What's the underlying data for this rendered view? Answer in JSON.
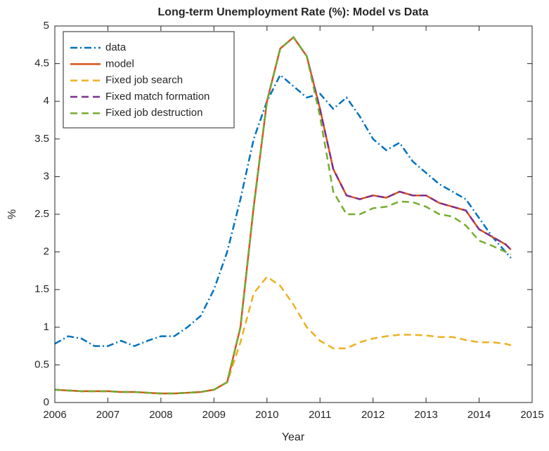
{
  "chart_data": {
    "type": "line",
    "title": "Long-term Unemployment Rate (%): Model vs Data",
    "xlabel": "Year",
    "ylabel": "%",
    "x": [
      2006,
      2006.25,
      2006.5,
      2006.75,
      2007,
      2007.25,
      2007.5,
      2007.75,
      2008,
      2008.25,
      2008.5,
      2008.75,
      2009,
      2009.25,
      2009.5,
      2009.75,
      2010,
      2010.25,
      2010.5,
      2010.75,
      2011,
      2011.25,
      2011.5,
      2011.75,
      2012,
      2012.25,
      2012.5,
      2012.75,
      2013,
      2013.25,
      2013.5,
      2013.75,
      2014,
      2014.25,
      2014.5,
      2014.6
    ],
    "series": [
      {
        "name": "data",
        "color": "#0072bd",
        "line_style": "dashdot",
        "values": [
          0.78,
          0.88,
          0.85,
          0.75,
          0.75,
          0.82,
          0.75,
          0.82,
          0.88,
          0.88,
          1.0,
          1.15,
          1.5,
          2.0,
          2.7,
          3.5,
          4.0,
          4.35,
          4.2,
          4.05,
          4.1,
          3.9,
          4.05,
          3.8,
          3.5,
          3.35,
          3.45,
          3.2,
          3.05,
          2.9,
          2.8,
          2.7,
          2.45,
          2.2,
          2.0,
          1.92
        ]
      },
      {
        "name": "model",
        "color": "#d95319",
        "line_style": "solid",
        "values": [
          0.17,
          0.16,
          0.15,
          0.15,
          0.15,
          0.14,
          0.14,
          0.13,
          0.12,
          0.12,
          0.13,
          0.14,
          0.17,
          0.27,
          1.0,
          2.6,
          4.0,
          4.7,
          4.85,
          4.6,
          3.9,
          3.1,
          2.75,
          2.7,
          2.75,
          2.72,
          2.8,
          2.75,
          2.75,
          2.65,
          2.6,
          2.55,
          2.3,
          2.2,
          2.1,
          2.03
        ]
      },
      {
        "name": "Fixed job search",
        "color": "#edb120",
        "line_style": "dashed",
        "values": [
          0.17,
          0.16,
          0.15,
          0.15,
          0.15,
          0.14,
          0.14,
          0.13,
          0.12,
          0.12,
          0.13,
          0.14,
          0.17,
          0.27,
          0.8,
          1.45,
          1.67,
          1.55,
          1.3,
          1.0,
          0.82,
          0.72,
          0.72,
          0.8,
          0.85,
          0.88,
          0.9,
          0.9,
          0.89,
          0.87,
          0.87,
          0.83,
          0.8,
          0.8,
          0.78,
          0.76
        ]
      },
      {
        "name": "Fixed match formation",
        "color": "#7e2f8e",
        "line_style": "dashed",
        "values": [
          0.17,
          0.16,
          0.15,
          0.15,
          0.15,
          0.14,
          0.14,
          0.13,
          0.12,
          0.12,
          0.13,
          0.14,
          0.17,
          0.27,
          1.0,
          2.6,
          4.0,
          4.7,
          4.85,
          4.6,
          3.9,
          3.1,
          2.75,
          2.7,
          2.75,
          2.72,
          2.8,
          2.75,
          2.75,
          2.65,
          2.6,
          2.55,
          2.3,
          2.2,
          2.1,
          2.03
        ]
      },
      {
        "name": "Fixed job destruction",
        "color": "#77ac30",
        "line_style": "dashed",
        "values": [
          0.17,
          0.16,
          0.15,
          0.15,
          0.15,
          0.14,
          0.14,
          0.13,
          0.12,
          0.12,
          0.13,
          0.14,
          0.17,
          0.27,
          1.0,
          2.6,
          4.0,
          4.7,
          4.85,
          4.6,
          3.8,
          2.8,
          2.5,
          2.5,
          2.58,
          2.6,
          2.67,
          2.66,
          2.6,
          2.5,
          2.47,
          2.35,
          2.15,
          2.08,
          2.0,
          1.97
        ]
      }
    ],
    "xlim": [
      2006,
      2015
    ],
    "xticks": [
      2006,
      2007,
      2008,
      2009,
      2010,
      2011,
      2012,
      2013,
      2014,
      2015
    ],
    "ylim": [
      0,
      5
    ],
    "yticks": [
      0,
      0.5,
      1,
      1.5,
      2,
      2.5,
      3,
      3.5,
      4,
      4.5,
      5
    ],
    "grid": false,
    "legend_position": "upper-left"
  }
}
